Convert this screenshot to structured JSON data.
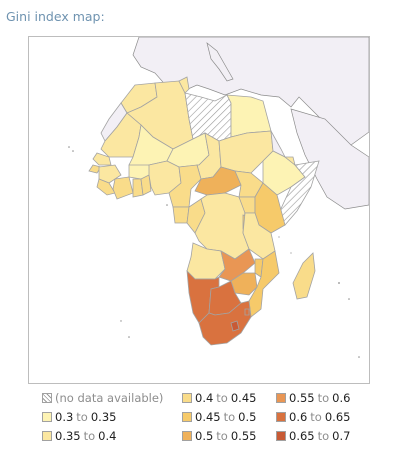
{
  "title": "Gini index map:",
  "map": {
    "background_color": "#ffffff",
    "neighbor_fill": "#f2eff5",
    "border_color": "#8c8c8c",
    "no_data_pattern": "diagonal-hatch"
  },
  "legend": {
    "to_word": "to",
    "no_data_label": "(no data available)",
    "bins": [
      {
        "low": "0.3",
        "high": "0.35",
        "color": "#fdf3b4"
      },
      {
        "low": "0.35",
        "high": "0.4",
        "color": "#fbe7a1"
      },
      {
        "low": "0.4",
        "high": "0.45",
        "color": "#f9dc8a"
      },
      {
        "low": "0.45",
        "high": "0.5",
        "color": "#f6ca6a"
      },
      {
        "low": "0.5",
        "high": "0.55",
        "color": "#efb15a"
      },
      {
        "low": "0.55",
        "high": "0.6",
        "color": "#e99654"
      },
      {
        "low": "0.6",
        "high": "0.65",
        "color": "#d9723f"
      },
      {
        "low": "0.65",
        "high": "0.7",
        "color": "#c85a35"
      }
    ]
  }
}
